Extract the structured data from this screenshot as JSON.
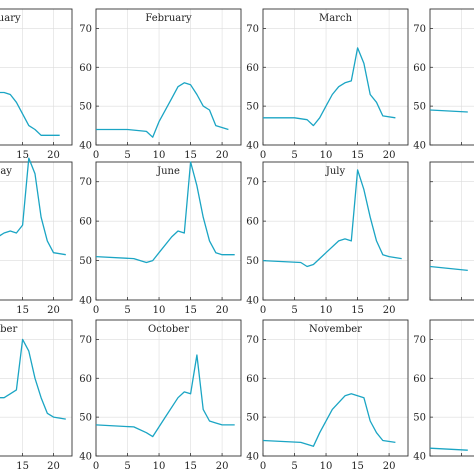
{
  "colors": {
    "line": "#1ba5c4"
  },
  "chart_data": [
    {
      "type": "line",
      "title": "January",
      "xlim": [
        0,
        23
      ],
      "ylim": [
        40,
        75
      ],
      "xticks": [
        15,
        20
      ],
      "yticks": [],
      "x": [
        0,
        6,
        8,
        10,
        12,
        13,
        14,
        15,
        16,
        17,
        18,
        19,
        21
      ],
      "y": [
        49,
        51,
        53,
        53.5,
        53.5,
        53,
        51,
        48,
        45,
        44,
        42.5,
        42.5,
        42.5
      ]
    },
    {
      "type": "line",
      "title": "February",
      "xlim": [
        0,
        23
      ],
      "ylim": [
        40,
        75
      ],
      "xticks": [
        0,
        5,
        10,
        15,
        20
      ],
      "yticks": [
        40,
        50,
        60,
        70
      ],
      "x": [
        0,
        5,
        8,
        9,
        10,
        12,
        13,
        14,
        15,
        16,
        17,
        18,
        19,
        21
      ],
      "y": [
        44,
        44,
        43.5,
        42,
        46,
        52,
        55,
        56,
        55.5,
        53,
        50,
        49,
        45,
        44
      ]
    },
    {
      "type": "line",
      "title": "March",
      "xlim": [
        0,
        23
      ],
      "ylim": [
        40,
        75
      ],
      "xticks": [
        0,
        5,
        10,
        15,
        20
      ],
      "yticks": [
        40,
        50,
        60,
        70
      ],
      "x": [
        0,
        5,
        7,
        8,
        9,
        10,
        11,
        12,
        13,
        14,
        15,
        16,
        17,
        18,
        19,
        21
      ],
      "y": [
        47,
        47,
        46.5,
        45,
        47,
        50,
        53,
        55,
        56,
        56.5,
        65,
        61,
        53,
        51,
        47.5,
        47
      ]
    },
    {
      "type": "line",
      "title": "",
      "xlim": [
        0,
        23
      ],
      "ylim": [
        40,
        75
      ],
      "xticks": [],
      "yticks": [
        40,
        50,
        60,
        70
      ],
      "x": [
        0,
        6
      ],
      "y": [
        49,
        48.5
      ]
    },
    {
      "type": "line",
      "title": "May",
      "xlim": [
        0,
        23
      ],
      "ylim": [
        40,
        75
      ],
      "xticks": [
        15,
        20
      ],
      "yticks": [],
      "x": [
        0,
        10,
        11,
        12,
        13,
        14,
        15,
        16,
        17,
        18,
        19,
        20,
        22
      ],
      "y": [
        54,
        55,
        56,
        57,
        57.5,
        57,
        59,
        76,
        72,
        61,
        55,
        52,
        51.5
      ]
    },
    {
      "type": "line",
      "title": "June",
      "xlim": [
        0,
        23
      ],
      "ylim": [
        40,
        75
      ],
      "xticks": [
        0,
        5,
        10,
        15,
        20
      ],
      "yticks": [
        40,
        50,
        60,
        70
      ],
      "x": [
        0,
        6,
        8,
        9,
        10,
        12,
        13,
        14,
        15,
        16,
        17,
        18,
        19,
        20,
        22
      ],
      "y": [
        51,
        50.5,
        49.5,
        50,
        52,
        56,
        57.5,
        57,
        75,
        69,
        61,
        55,
        52,
        51.5,
        51.5
      ]
    },
    {
      "type": "line",
      "title": "July",
      "xlim": [
        0,
        23
      ],
      "ylim": [
        40,
        75
      ],
      "xticks": [
        0,
        5,
        10,
        15,
        20
      ],
      "yticks": [
        40,
        50,
        60,
        70
      ],
      "x": [
        0,
        6,
        7,
        8,
        10,
        12,
        13,
        14,
        15,
        16,
        17,
        18,
        19,
        20,
        22
      ],
      "y": [
        50,
        49.5,
        48.5,
        49,
        52,
        55,
        55.5,
        55,
        73,
        68,
        61,
        55,
        51.5,
        51,
        50.5
      ]
    },
    {
      "type": "line",
      "title": "",
      "xlim": [
        0,
        23
      ],
      "ylim": [
        40,
        75
      ],
      "xticks": [],
      "yticks": [],
      "x": [
        0,
        6
      ],
      "y": [
        48.5,
        47.5
      ]
    },
    {
      "type": "line",
      "title": "ember",
      "xlim": [
        0,
        23
      ],
      "ylim": [
        40,
        75
      ],
      "xticks": [
        15,
        20
      ],
      "yticks": [],
      "x": [
        0,
        10,
        11,
        12,
        13,
        14,
        15,
        16,
        17,
        18,
        19,
        20,
        22
      ],
      "y": [
        53,
        54,
        55,
        55,
        56,
        57,
        70,
        67,
        60,
        55,
        51,
        50,
        49.5
      ]
    },
    {
      "type": "line",
      "title": "October",
      "xlim": [
        0,
        23
      ],
      "ylim": [
        40,
        75
      ],
      "xticks": [
        0,
        5,
        10,
        15,
        20
      ],
      "yticks": [
        40,
        50,
        60,
        70
      ],
      "x": [
        0,
        6,
        8,
        9,
        11,
        13,
        14,
        15,
        16,
        17,
        18,
        19,
        20,
        22
      ],
      "y": [
        48,
        47.5,
        46,
        45,
        50,
        55,
        56.5,
        56,
        66,
        52,
        49,
        48.5,
        48,
        48
      ]
    },
    {
      "type": "line",
      "title": "November",
      "xlim": [
        0,
        23
      ],
      "ylim": [
        40,
        75
      ],
      "xticks": [
        0,
        5,
        10,
        15,
        20
      ],
      "yticks": [
        40,
        50,
        60,
        70
      ],
      "x": [
        0,
        6,
        8,
        9,
        11,
        13,
        14,
        15,
        16,
        17,
        18,
        19,
        21
      ],
      "y": [
        44,
        43.5,
        42.5,
        46,
        52,
        55.5,
        56,
        55.5,
        55,
        49,
        46,
        44,
        43.5
      ]
    },
    {
      "type": "line",
      "title": "",
      "xlim": [
        0,
        23
      ],
      "ylim": [
        40,
        75
      ],
      "xticks": [],
      "yticks": [
        40,
        50,
        60,
        70
      ],
      "x": [
        0,
        6
      ],
      "y": [
        42,
        41.5
      ]
    }
  ]
}
